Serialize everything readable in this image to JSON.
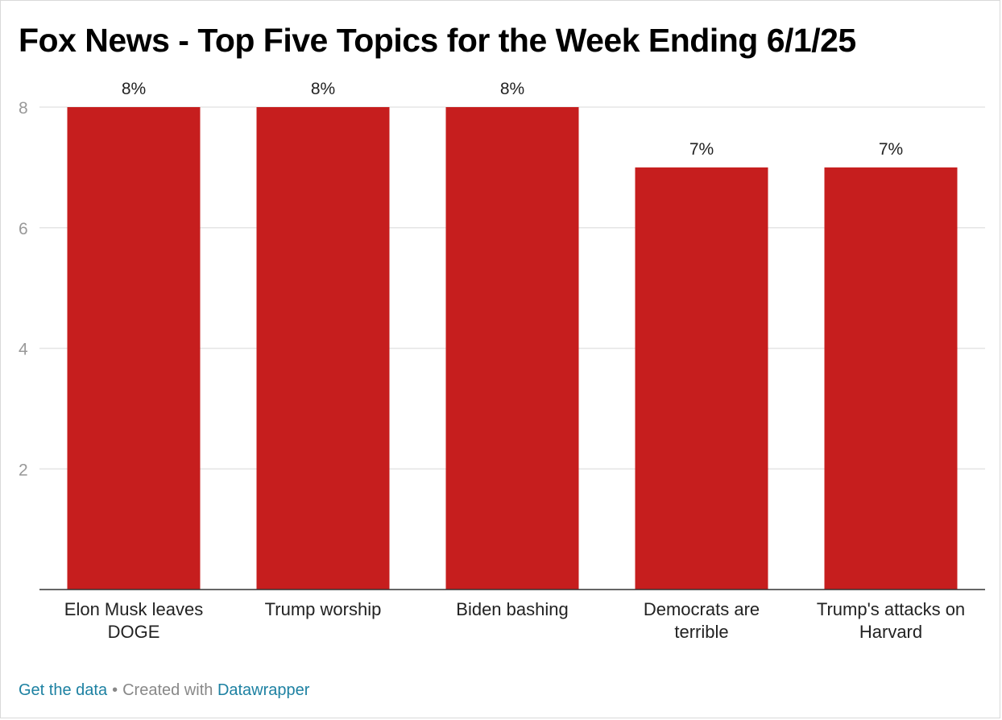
{
  "title": "Fox News - Top Five Topics for the Week Ending 6/1/25",
  "footer": {
    "get_data": "Get the data",
    "separator": "•",
    "created_with": "Created with",
    "tool": "Datawrapper"
  },
  "colors": {
    "bar": "#c61e1e",
    "gridline": "#e5e5e5",
    "baseline": "#333333",
    "tick_label": "#999999",
    "value_label": "#222222",
    "link": "#1d81a2"
  },
  "chart_data": {
    "type": "bar",
    "title": "Fox News - Top Five Topics for the Week Ending 6/1/25",
    "categories": [
      [
        "Elon Musk leaves",
        "DOGE"
      ],
      [
        "Trump worship"
      ],
      [
        "Biden bashing"
      ],
      [
        "Democrats are",
        "terrible"
      ],
      [
        "Trump's attacks on",
        "Harvard"
      ]
    ],
    "values": [
      8,
      8,
      8,
      7,
      7
    ],
    "value_labels": [
      "8%",
      "8%",
      "8%",
      "7%",
      "7%"
    ],
    "yticks": [
      "2",
      "4",
      "6",
      "8"
    ],
    "ylim": [
      0,
      8
    ],
    "grid": true,
    "legend": "none",
    "xlabel": "",
    "ylabel": ""
  }
}
